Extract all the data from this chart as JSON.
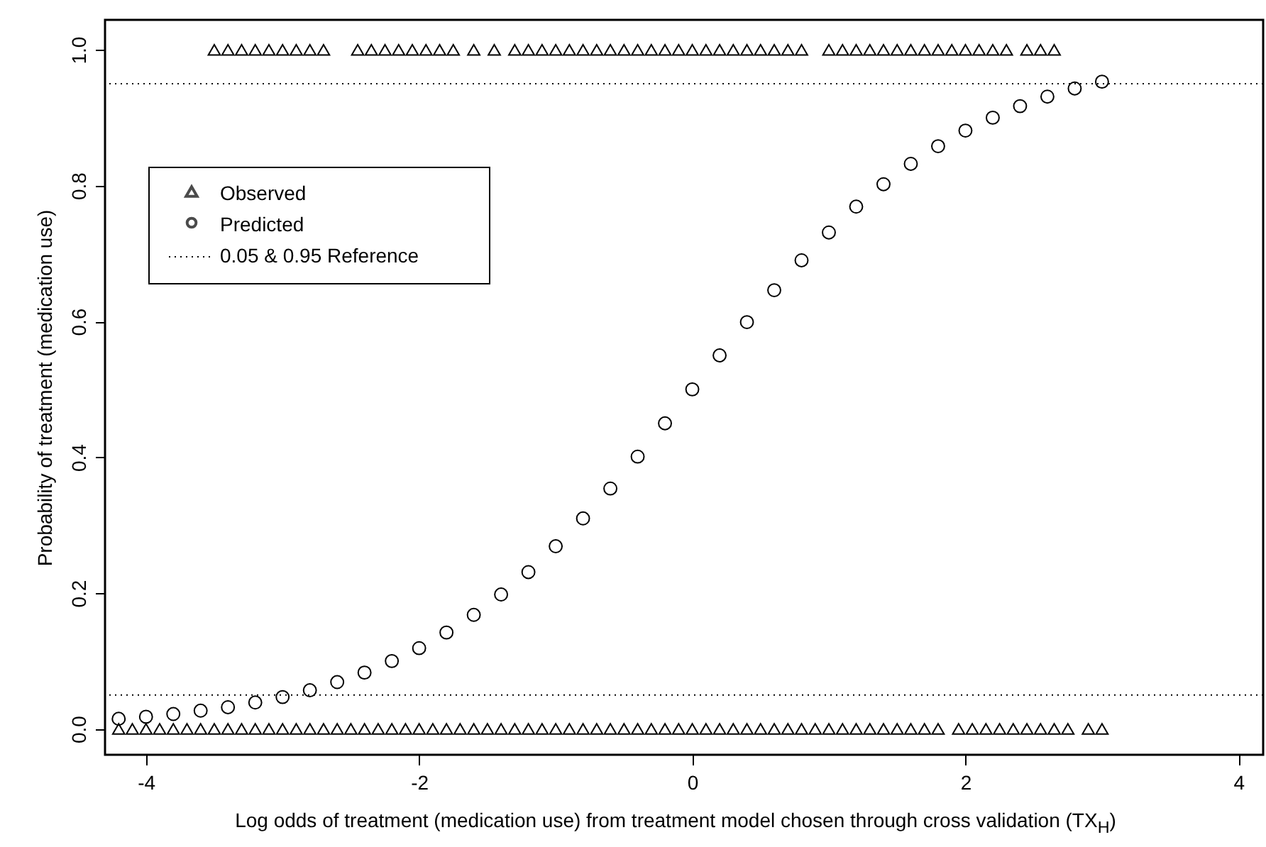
{
  "chart_data": {
    "type": "scatter",
    "xlabel": "Log odds of treatment (medication use) from treatment model chosen through cross validation (TX$_{H}$)",
    "ylabel": "Probability of treatment (medication use)",
    "xlim": [
      -4.3,
      4.18
    ],
    "ylim": [
      -0.038,
      1.044
    ],
    "xticks": [
      -4,
      -2,
      0,
      2,
      4
    ],
    "yticks": [
      {
        "value": 0,
        "label": "0.0"
      },
      {
        "value": 0.2,
        "label": "0.2"
      },
      {
        "value": 0.4,
        "label": "0.4"
      },
      {
        "value": 0.6,
        "label": "0.6"
      },
      {
        "value": 0.8,
        "label": "0.8"
      },
      {
        "value": 1,
        "label": "1.0"
      }
    ],
    "grid": false,
    "legend": "top left",
    "ref_lines": [
      {
        "axis": "y",
        "value": 0.05,
        "label": "0.05 & 0.95 Reference",
        "line_style": "dotted",
        "color": "#000000"
      },
      {
        "axis": "y",
        "value": 0.95,
        "line_style": "dotted",
        "color": "#000000"
      }
    ],
    "series": [
      {
        "name": "Observed",
        "marker": "triangle",
        "color": "#000000",
        "x": [
          -3.5,
          -3.4,
          -3.3,
          -3.2,
          -3.1,
          -3.0,
          -2.9,
          -2.8,
          -2.7,
          -2.45,
          -2.35,
          -2.25,
          -2.15,
          -2.05,
          -1.95,
          -1.85,
          -1.75,
          -1.6,
          -1.45,
          -1.3,
          -1.2,
          -1.1,
          -1.0,
          -0.9,
          -0.8,
          -0.7,
          -0.6,
          -0.5,
          -0.4,
          -0.3,
          -0.2,
          -0.1,
          0.0,
          0.1,
          0.2,
          0.3,
          0.4,
          0.5,
          0.6,
          0.7,
          0.8,
          1.0,
          1.1,
          1.2,
          1.3,
          1.4,
          1.5,
          1.6,
          1.7,
          1.8,
          1.9,
          2.0,
          2.1,
          2.2,
          2.3,
          2.45,
          2.55,
          2.65,
          -4.2,
          -4.1,
          -4.0,
          -3.9,
          -3.8,
          -3.7,
          -3.6,
          -3.5,
          -3.4,
          -3.3,
          -3.2,
          -3.1,
          -3.0,
          -2.9,
          -2.8,
          -2.7,
          -2.6,
          -2.5,
          -2.4,
          -2.3,
          -2.2,
          -2.1,
          -2.0,
          -1.9,
          -1.8,
          -1.7,
          -1.6,
          -1.5,
          -1.4,
          -1.3,
          -1.2,
          -1.1,
          -1.0,
          -0.9,
          -0.8,
          -0.7,
          -0.6,
          -0.5,
          -0.4,
          -0.3,
          -0.2,
          -0.1,
          0.0,
          0.1,
          0.2,
          0.3,
          0.4,
          0.5,
          0.6,
          0.7,
          0.8,
          0.9,
          1.0,
          1.1,
          1.2,
          1.3,
          1.4,
          1.5,
          1.6,
          1.7,
          1.8,
          1.95,
          2.05,
          2.15,
          2.25,
          2.35,
          2.45,
          2.55,
          2.65,
          2.75,
          2.9,
          3.0
        ],
        "values": [
          1,
          1,
          1,
          1,
          1,
          1,
          1,
          1,
          1,
          1,
          1,
          1,
          1,
          1,
          1,
          1,
          1,
          1,
          1,
          1,
          1,
          1,
          1,
          1,
          1,
          1,
          1,
          1,
          1,
          1,
          1,
          1,
          1,
          1,
          1,
          1,
          1,
          1,
          1,
          1,
          1,
          1,
          1,
          1,
          1,
          1,
          1,
          1,
          1,
          1,
          1,
          1,
          1,
          1,
          1,
          1,
          1,
          1,
          0,
          0,
          0,
          0,
          0,
          0,
          0,
          0,
          0,
          0,
          0,
          0,
          0,
          0,
          0,
          0,
          0,
          0,
          0,
          0,
          0,
          0,
          0,
          0,
          0,
          0,
          0,
          0,
          0,
          0,
          0,
          0,
          0,
          0,
          0,
          0,
          0,
          0,
          0,
          0,
          0,
          0,
          0,
          0,
          0,
          0,
          0,
          0,
          0,
          0,
          0,
          0,
          0,
          0,
          0,
          0,
          0,
          0,
          0,
          0,
          0,
          0,
          0,
          0,
          0,
          0,
          0,
          0,
          0,
          0,
          0,
          0
        ]
      },
      {
        "name": "Predicted",
        "marker": "circle",
        "color": "#000000",
        "x": [
          -4.2,
          -4.0,
          -3.8,
          -3.6,
          -3.4,
          -3.2,
          -3.0,
          -2.8,
          -2.6,
          -2.4,
          -2.2,
          -2.0,
          -1.8,
          -1.6,
          -1.4,
          -1.2,
          -1.0,
          -0.8,
          -0.6,
          -0.4,
          -0.2,
          0.0,
          0.2,
          0.4,
          0.6,
          0.8,
          1.0,
          1.2,
          1.4,
          1.6,
          1.8,
          2.0,
          2.2,
          2.4,
          2.6,
          2.8,
          3.0
        ],
        "values": [
          0.015,
          0.018,
          0.022,
          0.027,
          0.032,
          0.039,
          0.047,
          0.057,
          0.069,
          0.083,
          0.1,
          0.119,
          0.142,
          0.168,
          0.198,
          0.231,
          0.269,
          0.31,
          0.354,
          0.401,
          0.45,
          0.5,
          0.55,
          0.599,
          0.646,
          0.69,
          0.731,
          0.769,
          0.802,
          0.832,
          0.858,
          0.881,
          0.9,
          0.917,
          0.931,
          0.943,
          0.953
        ]
      }
    ]
  }
}
